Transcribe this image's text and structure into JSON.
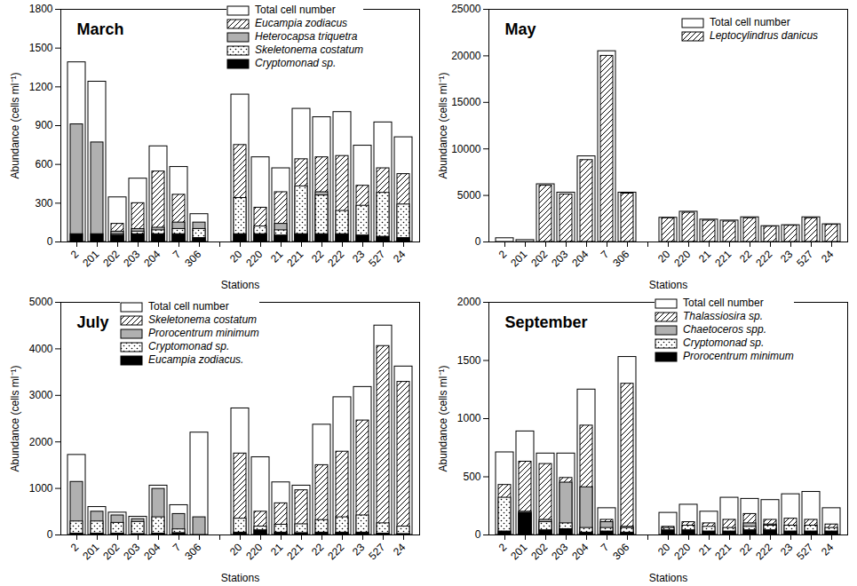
{
  "chart_data": [
    {
      "type": "bar",
      "title": "March",
      "xlabel": "Stations",
      "ylabel": "Abundance (cells ml⁻¹)",
      "stacked": false,
      "categories": [
        "2",
        "201",
        "202",
        "203",
        "204",
        "7",
        "306",
        null,
        "20",
        "220",
        "21",
        "221",
        "22",
        "222",
        "23",
        "527",
        "24"
      ],
      "ylim": [
        0,
        1800
      ],
      "yticks": [
        0,
        300,
        600,
        900,
        1200,
        1500,
        1800
      ],
      "series": [
        {
          "name": "Total cell number",
          "color": "#ffffff",
          "marker": "solid",
          "values": [
            1390,
            1240,
            345,
            490,
            740,
            580,
            215,
            null,
            1140,
            655,
            570,
            1030,
            965,
            1005,
            745,
            925,
            810
          ]
        },
        {
          "name": "Eucampia zodiacus",
          "color": "#ffffff",
          "marker": "hatch",
          "values": [
            0,
            0,
            140,
            300,
            545,
            365,
            0,
            null,
            750,
            265,
            385,
            640,
            655,
            665,
            435,
            570,
            525
          ]
        },
        {
          "name": "Heterocapsa triquetra",
          "color": "#b0b0b0",
          "marker": "solid",
          "values": [
            910,
            770,
            80,
            100,
            110,
            150,
            150,
            null,
            0,
            100,
            140,
            80,
            385,
            0,
            0,
            0,
            0
          ]
        },
        {
          "name": "Skeletonema costatum",
          "color": "#ffffff",
          "marker": "dots",
          "values": [
            0,
            0,
            60,
            80,
            90,
            100,
            100,
            null,
            340,
            120,
            90,
            430,
            360,
            240,
            280,
            380,
            290
          ]
        },
        {
          "name": "Cryptomonad sp.",
          "color": "#000000",
          "marker": "solid",
          "values": [
            60,
            60,
            50,
            60,
            60,
            60,
            30,
            null,
            60,
            60,
            50,
            60,
            60,
            60,
            50,
            40,
            30
          ]
        }
      ]
    },
    {
      "type": "bar",
      "title": "May",
      "xlabel": "Stations",
      "ylabel": "Abundance (cells ml⁻¹)",
      "stacked": false,
      "categories": [
        "2",
        "201",
        "202",
        "203",
        "204",
        "7",
        "306",
        null,
        "20",
        "220",
        "21",
        "221",
        "22",
        "222",
        "23",
        "527",
        "24"
      ],
      "ylim": [
        0,
        25000
      ],
      "yticks": [
        0,
        5000,
        10000,
        15000,
        20000,
        25000
      ],
      "series": [
        {
          "name": "Total cell number",
          "color": "#ffffff",
          "marker": "solid",
          "values": [
            400,
            200,
            6200,
            5300,
            9200,
            20500,
            5300,
            null,
            2600,
            3250,
            2400,
            2300,
            2650,
            1700,
            1800,
            2650,
            1900
          ]
        },
        {
          "name": "Leptocylindrus danicus",
          "color": "#ffffff",
          "marker": "hatch",
          "values": [
            0,
            0,
            6050,
            5100,
            8800,
            20000,
            5200,
            null,
            2550,
            3150,
            2300,
            2200,
            2550,
            1650,
            1750,
            2550,
            1850
          ]
        }
      ]
    },
    {
      "type": "bar",
      "title": "July",
      "xlabel": "Stations",
      "ylabel": "Abundance (cells ml⁻¹)",
      "stacked": false,
      "categories": [
        "2",
        "201",
        "202",
        "203",
        "204",
        "7",
        "306",
        null,
        "20",
        "220",
        "21",
        "221",
        "22",
        "222",
        "23",
        "527",
        "24"
      ],
      "ylim": [
        0,
        5000
      ],
      "yticks": [
        0,
        1000,
        2000,
        3000,
        4000,
        5000
      ],
      "series": [
        {
          "name": "Total cell number",
          "color": "#ffffff",
          "marker": "solid",
          "values": [
            1720,
            600,
            480,
            390,
            1060,
            640,
            2200,
            null,
            2720,
            1670,
            1130,
            1060,
            2370,
            2960,
            3180,
            4500,
            3620
          ]
        },
        {
          "name": "Skeletonema costatum",
          "color": "#ffffff",
          "marker": "hatch",
          "values": [
            0,
            0,
            0,
            0,
            0,
            0,
            0,
            null,
            1750,
            500,
            680,
            960,
            1500,
            1790,
            2460,
            4060,
            3290
          ]
        },
        {
          "name": "Prorocentrum minimum",
          "color": "#b0b0b0",
          "marker": "solid",
          "values": [
            1140,
            500,
            420,
            340,
            990,
            450,
            380,
            null,
            0,
            0,
            0,
            0,
            0,
            0,
            0,
            0,
            0
          ]
        },
        {
          "name": "Cryptomonad sp.",
          "color": "#ffffff",
          "marker": "dots",
          "values": [
            290,
            290,
            260,
            280,
            380,
            120,
            0,
            null,
            350,
            180,
            220,
            230,
            320,
            380,
            420,
            250,
            180
          ]
        },
        {
          "name": "Eucampia zodiacus.",
          "color": "#000000",
          "marker": "solid",
          "values": [
            30,
            30,
            30,
            20,
            30,
            40,
            0,
            null,
            50,
            100,
            50,
            40,
            50,
            50,
            50,
            30,
            20
          ]
        }
      ]
    },
    {
      "type": "bar",
      "title": "September",
      "xlabel": "Stations",
      "ylabel": "Abundance (cells ml⁻¹)",
      "stacked": false,
      "categories": [
        "2",
        "201",
        "202",
        "203",
        "204",
        "7",
        "306",
        null,
        "20",
        "220",
        "21",
        "221",
        "22",
        "222",
        "23",
        "527",
        "24"
      ],
      "ylim": [
        0,
        2000
      ],
      "yticks": [
        0,
        500,
        1000,
        1500,
        2000
      ],
      "series": [
        {
          "name": "Total cell number",
          "color": "#ffffff",
          "marker": "solid",
          "values": [
            710,
            890,
            700,
            700,
            1250,
            230,
            1530,
            null,
            190,
            260,
            200,
            320,
            310,
            300,
            350,
            370,
            230
          ]
        },
        {
          "name": "Thalassiosira sp.",
          "color": "#ffffff",
          "marker": "hatch",
          "values": [
            430,
            630,
            610,
            490,
            940,
            130,
            1300,
            null,
            70,
            110,
            100,
            130,
            180,
            130,
            140,
            130,
            90
          ]
        },
        {
          "name": "Chaetoceros spp.",
          "color": "#b0b0b0",
          "marker": "solid",
          "values": [
            0,
            200,
            130,
            450,
            410,
            110,
            70,
            null,
            0,
            0,
            0,
            0,
            100,
            90,
            0,
            0,
            0
          ]
        },
        {
          "name": "Cryptomonad sp.",
          "color": "#ffffff",
          "marker": "dots",
          "values": [
            320,
            180,
            110,
            100,
            60,
            60,
            60,
            null,
            60,
            80,
            70,
            60,
            70,
            80,
            80,
            80,
            60
          ]
        },
        {
          "name": "Prorocentrum minimum",
          "color": "#000000",
          "marker": "solid",
          "values": [
            30,
            190,
            40,
            50,
            20,
            30,
            20,
            null,
            40,
            40,
            30,
            30,
            40,
            40,
            30,
            30,
            30
          ]
        }
      ]
    }
  ]
}
